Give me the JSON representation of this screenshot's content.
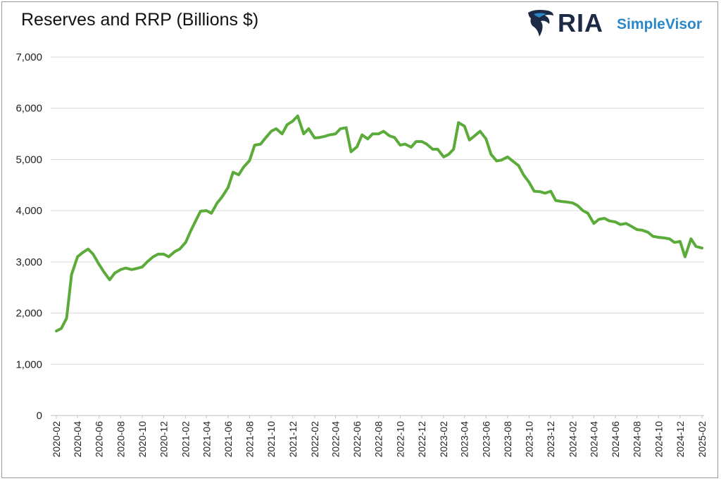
{
  "chart_data": {
    "type": "line",
    "title": "Reserves and RRP (Billions $)",
    "xlabel": "",
    "ylabel": "",
    "ylim": [
      0,
      7000
    ],
    "yticks": [
      "0",
      "1,000",
      "2,000",
      "3,000",
      "4,000",
      "5,000",
      "6,000",
      "7,000"
    ],
    "yticks_values": [
      0,
      1000,
      2000,
      3000,
      4000,
      5000,
      6000,
      7000
    ],
    "xticks": [
      "2020-02",
      "2020-04",
      "2020-06",
      "2020-08",
      "2020-10",
      "2020-12",
      "2021-02",
      "2021-04",
      "2021-06",
      "2021-08",
      "2021-10",
      "2021-12",
      "2022-02",
      "2022-04",
      "2022-06",
      "2022-08",
      "2022-10",
      "2022-12",
      "2023-02",
      "2023-04",
      "2023-06",
      "2023-08",
      "2023-10",
      "2023-12",
      "2024-02",
      "2024-04",
      "2024-06",
      "2024-08",
      "2024-10",
      "2024-12",
      "2025-02"
    ],
    "grid": "horizontal",
    "series_color": "#5aab3a",
    "series": [
      {
        "x": [
          "2020-02",
          "2020-02-15",
          "2020-03",
          "2020-03-15",
          "2020-04",
          "2020-04-15",
          "2020-05",
          "2020-05-15",
          "2020-06",
          "2020-06-15",
          "2020-07",
          "2020-07-15",
          "2020-08",
          "2020-08-15",
          "2020-09",
          "2020-09-15",
          "2020-10",
          "2020-10-15",
          "2020-11",
          "2020-11-15",
          "2020-12",
          "2020-12-15",
          "2021-01",
          "2021-01-15",
          "2021-02",
          "2021-02-15",
          "2021-03",
          "2021-03-15",
          "2021-04",
          "2021-04-15",
          "2021-05",
          "2021-05-15",
          "2021-06",
          "2021-06-15",
          "2021-07",
          "2021-07-15",
          "2021-08",
          "2021-08-15",
          "2021-09",
          "2021-09-15",
          "2021-10",
          "2021-10-15",
          "2021-11",
          "2021-11-15",
          "2021-12",
          "2021-12-15",
          "2022-01",
          "2022-01-15",
          "2022-02",
          "2022-02-15",
          "2022-03",
          "2022-03-15",
          "2022-04",
          "2022-04-15",
          "2022-05",
          "2022-05-15",
          "2022-06",
          "2022-06-15",
          "2022-07",
          "2022-07-15",
          "2022-08",
          "2022-08-15",
          "2022-09",
          "2022-09-15",
          "2022-10",
          "2022-10-15",
          "2022-11",
          "2022-11-15",
          "2022-12",
          "2022-12-15",
          "2023-01",
          "2023-01-15",
          "2023-02",
          "2023-02-15",
          "2023-03",
          "2023-03-15",
          "2023-04",
          "2023-04-15",
          "2023-05",
          "2023-05-15",
          "2023-06",
          "2023-06-15",
          "2023-07",
          "2023-07-15",
          "2023-08",
          "2023-08-15",
          "2023-09",
          "2023-09-15",
          "2023-10",
          "2023-10-15",
          "2023-11",
          "2023-11-15",
          "2023-12",
          "2023-12-15",
          "2024-01",
          "2024-01-15",
          "2024-02",
          "2024-02-15",
          "2024-03",
          "2024-03-15",
          "2024-04",
          "2024-04-15",
          "2024-05",
          "2024-05-15",
          "2024-06",
          "2024-06-15",
          "2024-07",
          "2024-07-15",
          "2024-08",
          "2024-08-15",
          "2024-09",
          "2024-09-15",
          "2024-10",
          "2024-10-15",
          "2024-11",
          "2024-11-15",
          "2024-12",
          "2024-12-15",
          "2025-01",
          "2025-01-15",
          "2025-02"
        ],
        "values": [
          1650,
          1700,
          1900,
          2750,
          3100,
          3180,
          3250,
          3150,
          2950,
          2800,
          2650,
          2780,
          2850,
          2880,
          2850,
          2870,
          2900,
          3000,
          3100,
          3150,
          3150,
          3100,
          3200,
          3250,
          3380,
          3600,
          3800,
          3990,
          4000,
          3950,
          4150,
          4270,
          4450,
          4750,
          4700,
          4850,
          4980,
          5280,
          5300,
          5420,
          5550,
          5600,
          5500,
          5680,
          5750,
          5850,
          5500,
          5600,
          5420,
          5430,
          5450,
          5480,
          5500,
          5600,
          5620,
          5150,
          5250,
          5480,
          5400,
          5500,
          5500,
          5550,
          5460,
          5430,
          5280,
          5300,
          5240,
          5350,
          5350,
          5300,
          5200,
          5200,
          5050,
          5100,
          5200,
          5720,
          5650,
          5380,
          5470,
          5550,
          5400,
          5100,
          4970,
          4990,
          5050,
          4970,
          4880,
          4700,
          4550,
          4380,
          4370,
          4340,
          4380,
          4200,
          4180,
          4170,
          4150,
          4100,
          4000,
          3950,
          3750,
          3830,
          3850,
          3800,
          3780,
          3730,
          3750,
          3700,
          3630,
          3620,
          3580,
          3500,
          3480,
          3470,
          3450,
          3380,
          3400,
          3100,
          3450,
          3300,
          3270
        ]
      }
    ]
  }
}
